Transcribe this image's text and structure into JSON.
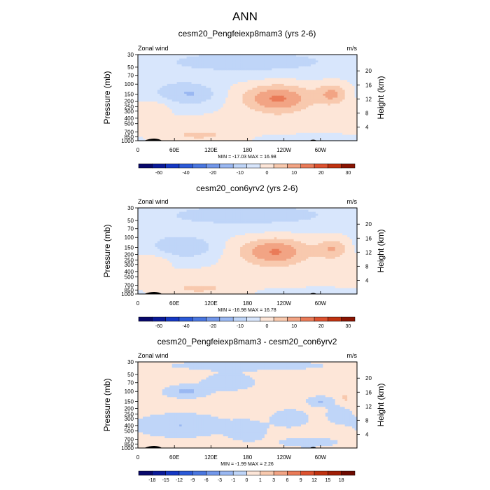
{
  "figure": {
    "title": "ANN"
  },
  "chart_data": [
    {
      "type": "heatmap",
      "title": "cesm20_Pengfeiexp8mam3 (yrs 2-6)",
      "left_label": "Zonal wind",
      "units": "m/s",
      "ylabel": "Pressure (mb)",
      "ylabel_right": "Height (km)",
      "x_ticks": [
        "0",
        "60E",
        "120E",
        "180",
        "120W",
        "60W"
      ],
      "x_tick_values": [
        0,
        60,
        120,
        180,
        240,
        300
      ],
      "xlim": [
        0,
        360
      ],
      "y_ticks": [
        "30",
        "50",
        "70",
        "100",
        "150",
        "200",
        "250",
        "300",
        "400",
        "500",
        "700",
        "850",
        "1000"
      ],
      "y_tick_values": [
        30,
        50,
        70,
        100,
        150,
        200,
        250,
        300,
        400,
        500,
        700,
        850,
        1000
      ],
      "ylim": [
        1000,
        30
      ],
      "y_scale": "log",
      "right_ticks": [
        "4",
        "8",
        "12",
        "16",
        "20"
      ],
      "right_tick_values": [
        4,
        8,
        12,
        16,
        20
      ],
      "stats": "MIN = -17.03  MAX =  16.98",
      "min": -17.03,
      "max": 16.98,
      "colorbar_labels": [
        "-60",
        "-40",
        "-20",
        "-10",
        "0",
        "10",
        "20",
        "30"
      ],
      "colorbar_levels": [
        -70,
        -60,
        -50,
        -40,
        -30,
        -20,
        -15,
        -10,
        -5,
        0,
        5,
        10,
        15,
        20,
        25,
        30,
        35
      ],
      "colorbar_colors": [
        "#08086b",
        "#0a1a99",
        "#1538c4",
        "#2c5ad8",
        "#4a77e0",
        "#7297ea",
        "#9ab8f2",
        "#bfd5f8",
        "#d8e6fc",
        "#fde6d8",
        "#f8c9ae",
        "#f2a484",
        "#ea7b58",
        "#dd5230",
        "#c03210",
        "#8a1402"
      ],
      "field": {
        "base": 0,
        "blobs": [
          {
            "lon": 95,
            "p": 150,
            "amp": -8,
            "slon": 40,
            "sp": 0.45
          },
          {
            "lon": 50,
            "p": 140,
            "amp": -5,
            "slon": 45,
            "sp": 0.55
          },
          {
            "lon": 230,
            "p": 180,
            "amp": 16,
            "slon": 55,
            "sp": 0.55
          },
          {
            "lon": 320,
            "p": 150,
            "amp": 11,
            "slon": 25,
            "sp": 0.42
          },
          {
            "lon": 180,
            "p": 40,
            "amp": -7,
            "slon": 200,
            "sp": 0.6
          },
          {
            "lon": 100,
            "p": 800,
            "amp": 6,
            "slon": 60,
            "sp": 0.25
          },
          {
            "lon": 230,
            "p": 500,
            "amp": 3,
            "slon": 120,
            "sp": 0.35
          },
          {
            "lon": 30,
            "p": 250,
            "amp": 4,
            "slon": 25,
            "sp": 0.3
          },
          {
            "lon": 280,
            "p": 900,
            "amp": -3,
            "slon": 70,
            "sp": 0.15
          }
        ]
      }
    },
    {
      "type": "heatmap",
      "title": "cesm20_con6yrv2 (yrs 2-6)",
      "left_label": "Zonal wind",
      "units": "m/s",
      "ylabel": "Pressure (mb)",
      "ylabel_right": "Height (km)",
      "x_ticks": [
        "0",
        "60E",
        "120E",
        "180",
        "120W",
        "60W"
      ],
      "x_tick_values": [
        0,
        60,
        120,
        180,
        240,
        300
      ],
      "xlim": [
        0,
        360
      ],
      "y_ticks": [
        "30",
        "50",
        "70",
        "100",
        "150",
        "200",
        "250",
        "300",
        "400",
        "500",
        "700",
        "850",
        "1000"
      ],
      "y_tick_values": [
        30,
        50,
        70,
        100,
        150,
        200,
        250,
        300,
        400,
        500,
        700,
        850,
        1000
      ],
      "ylim": [
        1000,
        30
      ],
      "y_scale": "log",
      "right_ticks": [
        "4",
        "8",
        "12",
        "16",
        "20"
      ],
      "right_tick_values": [
        4,
        8,
        12,
        16,
        20
      ],
      "stats": "MIN = -16.98  MAX =  16.78",
      "min": -16.98,
      "max": 16.78,
      "colorbar_labels": [
        "-60",
        "-40",
        "-20",
        "-10",
        "0",
        "10",
        "20",
        "30"
      ],
      "colorbar_levels": [
        -70,
        -60,
        -50,
        -40,
        -30,
        -20,
        -15,
        -10,
        -5,
        0,
        5,
        10,
        15,
        20,
        25,
        30,
        35
      ],
      "colorbar_colors": [
        "#08086b",
        "#0a1a99",
        "#1538c4",
        "#2c5ad8",
        "#4a77e0",
        "#7297ea",
        "#9ab8f2",
        "#bfd5f8",
        "#d8e6fc",
        "#fde6d8",
        "#f8c9ae",
        "#f2a484",
        "#ea7b58",
        "#dd5230",
        "#c03210",
        "#8a1402"
      ],
      "field": {
        "base": 0,
        "blobs": [
          {
            "lon": 90,
            "p": 150,
            "amp": -7.5,
            "slon": 40,
            "sp": 0.45
          },
          {
            "lon": 45,
            "p": 140,
            "amp": -5,
            "slon": 45,
            "sp": 0.55
          },
          {
            "lon": 225,
            "p": 180,
            "amp": 15.5,
            "slon": 55,
            "sp": 0.55
          },
          {
            "lon": 320,
            "p": 160,
            "amp": 10,
            "slon": 25,
            "sp": 0.42
          },
          {
            "lon": 180,
            "p": 40,
            "amp": -7,
            "slon": 200,
            "sp": 0.6
          },
          {
            "lon": 100,
            "p": 800,
            "amp": 6,
            "slon": 60,
            "sp": 0.25
          },
          {
            "lon": 230,
            "p": 500,
            "amp": 3,
            "slon": 120,
            "sp": 0.35
          },
          {
            "lon": 30,
            "p": 250,
            "amp": 4,
            "slon": 25,
            "sp": 0.3
          },
          {
            "lon": 280,
            "p": 900,
            "amp": -2.5,
            "slon": 70,
            "sp": 0.15
          }
        ]
      }
    },
    {
      "type": "heatmap",
      "title": "cesm20_Pengfeiexp8mam3 - cesm20_con6yrv2",
      "left_label": "Zonal wind",
      "units": "m/s",
      "ylabel": "Pressure (mb)",
      "ylabel_right": "Height (km)",
      "x_ticks": [
        "0",
        "60E",
        "120E",
        "180",
        "120W",
        "60W"
      ],
      "x_tick_values": [
        0,
        60,
        120,
        180,
        240,
        300
      ],
      "xlim": [
        0,
        360
      ],
      "y_ticks": [
        "30",
        "50",
        "70",
        "100",
        "150",
        "200",
        "250",
        "300",
        "400",
        "500",
        "700",
        "850",
        "1000"
      ],
      "y_tick_values": [
        30,
        50,
        70,
        100,
        150,
        200,
        250,
        300,
        400,
        500,
        700,
        850,
        1000
      ],
      "ylim": [
        1000,
        30
      ],
      "y_scale": "log",
      "right_ticks": [
        "4",
        "8",
        "12",
        "16",
        "20"
      ],
      "right_tick_values": [
        4,
        8,
        12,
        16,
        20
      ],
      "stats": "MIN = -1.99  MAX =  2.26",
      "min": -1.99,
      "max": 2.26,
      "colorbar_labels": [
        "-18",
        "-15",
        "-12",
        "-9",
        "-6",
        "-3",
        "-1",
        "0",
        "1",
        "3",
        "6",
        "9",
        "12",
        "15",
        "18"
      ],
      "colorbar_levels": [
        -21,
        -18,
        -15,
        -12,
        -9,
        -6,
        -3,
        -1,
        0,
        1,
        3,
        6,
        9,
        12,
        15,
        18,
        21
      ],
      "colorbar_colors": [
        "#08086b",
        "#0a1a99",
        "#1538c4",
        "#2c5ad8",
        "#4a77e0",
        "#7297ea",
        "#9ab8f2",
        "#bfd5f8",
        "#fde6d8",
        "#f8c9ae",
        "#f2a484",
        "#ea7b58",
        "#dd5230",
        "#c03210",
        "#a01e06",
        "#6e0a00"
      ],
      "field": {
        "base": 0.4,
        "blobs": [
          {
            "lon": 80,
            "p": 100,
            "amp": -1.6,
            "slon": 35,
            "sp": 0.25
          },
          {
            "lon": 150,
            "p": 70,
            "amp": -1.3,
            "slon": 40,
            "sp": 0.3
          },
          {
            "lon": 70,
            "p": 400,
            "amp": -1.4,
            "slon": 70,
            "sp": 0.45
          },
          {
            "lon": 180,
            "p": 500,
            "amp": -1.2,
            "slon": 30,
            "sp": 0.4
          },
          {
            "lon": 250,
            "p": 300,
            "amp": -1.2,
            "slon": 30,
            "sp": 0.35
          },
          {
            "lon": 300,
            "p": 150,
            "amp": -1.5,
            "slon": 20,
            "sp": 0.2
          },
          {
            "lon": 330,
            "p": 250,
            "amp": -1.0,
            "slon": 20,
            "sp": 0.35
          },
          {
            "lon": 180,
            "p": 35,
            "amp": -0.6,
            "slon": 200,
            "sp": 0.3
          },
          {
            "lon": 280,
            "p": 800,
            "amp": -1.0,
            "slon": 50,
            "sp": 0.2
          },
          {
            "lon": 340,
            "p": 130,
            "amp": 0.8,
            "slon": 12,
            "sp": 0.25
          }
        ]
      }
    }
  ]
}
